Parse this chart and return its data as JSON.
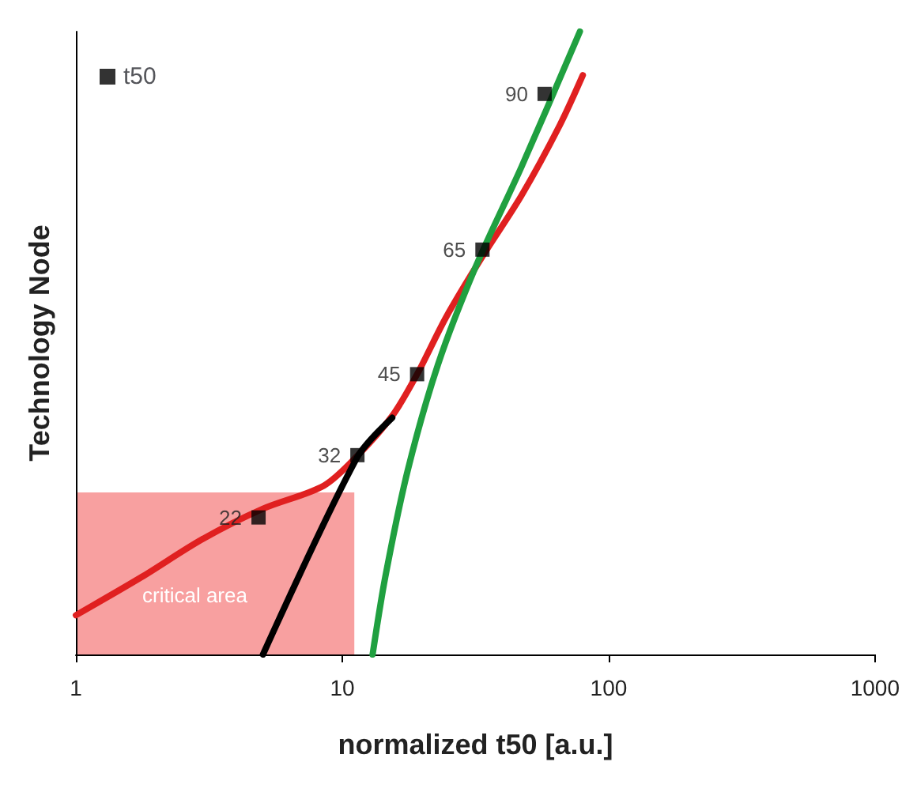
{
  "chart_data": {
    "type": "scatter",
    "xlabel": "normalized t50 [a.u.]",
    "ylabel": "Technology Node",
    "log": "x",
    "xlim": [
      1,
      1000
    ],
    "xticks": [
      1,
      10,
      100,
      1000
    ],
    "ylim": [
      0,
      100
    ],
    "tick_labels": "x",
    "grid": false,
    "legend": "top left",
    "series": [
      {
        "name": "t50",
        "color": "#000000",
        "marker": "square",
        "x": [
          4.85,
          11.4,
          19.1,
          33.6,
          57.5
        ],
        "values": [
          22,
          32,
          45,
          65,
          90
        ],
        "value_labels": [
          "22",
          "32",
          "45",
          "65",
          "90"
        ]
      },
      {
        "type": "area",
        "color": "#f8a0a0",
        "x": [
          1,
          11.1
        ],
        "values": [
          26,
          26
        ]
      },
      {
        "type": "line",
        "marker": "none",
        "color": "#e02020",
        "x": [
          1,
          1.76,
          2.98,
          5.04,
          8.53,
          11.4,
          15.4,
          19.1,
          24.5,
          33.6,
          47.1,
          65.6,
          80
        ],
        "values": [
          6.3,
          12.4,
          18.5,
          23.4,
          27.1,
          31.9,
          38.3,
          45,
          54.1,
          63.9,
          73.7,
          85,
          93
        ]
      },
      {
        "type": "line",
        "marker": "none",
        "color": "#20a040",
        "x": [
          13,
          14.5,
          17.6,
          22.9,
          31.8,
          47.1,
          78
        ],
        "values": [
          0,
          12.4,
          29.5,
          46.6,
          62.4,
          78.3,
          100
        ]
      },
      {
        "type": "line",
        "marker": "none",
        "color": "#000000",
        "x": [
          5.04,
          11.4,
          15.4
        ],
        "values": [
          0,
          31.7,
          38
        ]
      }
    ],
    "annotations": [
      "critical area"
    ]
  }
}
